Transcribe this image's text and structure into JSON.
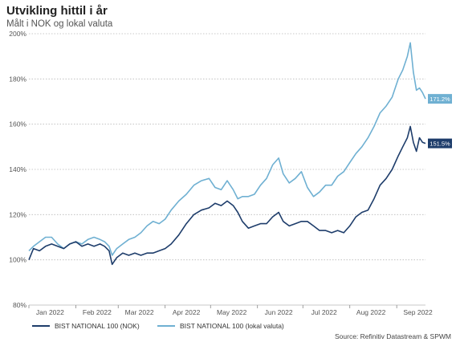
{
  "title": "Utvikling hittil i år",
  "subtitle": "Målt i NOK og lokal valuta",
  "source": "Source: Refinitiv Datastream & SPWM",
  "chart_data": {
    "type": "line",
    "ylim": [
      80,
      200
    ],
    "yticks": [
      "80%",
      "100%",
      "120%",
      "140%",
      "160%",
      "180%",
      "200%"
    ],
    "ytick_values": [
      80,
      100,
      120,
      140,
      160,
      180,
      200
    ],
    "xticks": [
      "Jan 2022",
      "Feb 2022",
      "Mar 2022",
      "Apr 2022",
      "May 2022",
      "Jun 2022",
      "Jul 2022",
      "Aug 2022",
      "Sep 2022"
    ],
    "xlim": [
      "2022-01-01",
      "2022-09-20"
    ],
    "grid": true,
    "legend_position": "bottom-left",
    "series": [
      {
        "name": "BIST NATIONAL 100 (NOK)",
        "color": "#1e3d6b",
        "end_label": "151.5%",
        "points": [
          [
            "2022-01-01",
            100
          ],
          [
            "2022-01-04",
            105
          ],
          [
            "2022-01-08",
            104
          ],
          [
            "2022-01-12",
            106
          ],
          [
            "2022-01-16",
            107
          ],
          [
            "2022-01-20",
            106
          ],
          [
            "2022-01-24",
            105
          ],
          [
            "2022-01-28",
            107
          ],
          [
            "2022-02-01",
            108
          ],
          [
            "2022-02-05",
            106
          ],
          [
            "2022-02-09",
            107
          ],
          [
            "2022-02-13",
            106
          ],
          [
            "2022-02-17",
            107
          ],
          [
            "2022-02-20",
            106
          ],
          [
            "2022-02-23",
            104
          ],
          [
            "2022-02-25",
            98
          ],
          [
            "2022-02-28",
            101
          ],
          [
            "2022-03-04",
            103
          ],
          [
            "2022-03-08",
            102
          ],
          [
            "2022-03-12",
            103
          ],
          [
            "2022-03-16",
            102
          ],
          [
            "2022-03-20",
            103
          ],
          [
            "2022-03-24",
            103
          ],
          [
            "2022-03-28",
            104
          ],
          [
            "2022-04-01",
            105
          ],
          [
            "2022-04-05",
            107
          ],
          [
            "2022-04-10",
            111
          ],
          [
            "2022-04-15",
            116
          ],
          [
            "2022-04-20",
            120
          ],
          [
            "2022-04-25",
            122
          ],
          [
            "2022-04-30",
            123
          ],
          [
            "2022-05-04",
            125
          ],
          [
            "2022-05-08",
            124
          ],
          [
            "2022-05-12",
            126
          ],
          [
            "2022-05-16",
            124
          ],
          [
            "2022-05-19",
            121
          ],
          [
            "2022-05-22",
            117
          ],
          [
            "2022-05-26",
            114
          ],
          [
            "2022-05-30",
            115
          ],
          [
            "2022-06-03",
            116
          ],
          [
            "2022-06-07",
            116
          ],
          [
            "2022-06-11",
            119
          ],
          [
            "2022-06-15",
            121
          ],
          [
            "2022-06-18",
            117
          ],
          [
            "2022-06-22",
            115
          ],
          [
            "2022-06-26",
            116
          ],
          [
            "2022-06-30",
            117
          ],
          [
            "2022-07-04",
            117
          ],
          [
            "2022-07-08",
            115
          ],
          [
            "2022-07-12",
            113
          ],
          [
            "2022-07-16",
            113
          ],
          [
            "2022-07-20",
            112
          ],
          [
            "2022-07-24",
            113
          ],
          [
            "2022-07-28",
            112
          ],
          [
            "2022-08-01",
            115
          ],
          [
            "2022-08-05",
            119
          ],
          [
            "2022-08-09",
            121
          ],
          [
            "2022-08-13",
            122
          ],
          [
            "2022-08-17",
            127
          ],
          [
            "2022-08-21",
            133
          ],
          [
            "2022-08-25",
            136
          ],
          [
            "2022-08-29",
            140
          ],
          [
            "2022-09-02",
            146
          ],
          [
            "2022-09-05",
            150
          ],
          [
            "2022-09-08",
            154
          ],
          [
            "2022-09-10",
            159
          ],
          [
            "2022-09-12",
            152
          ],
          [
            "2022-09-14",
            148
          ],
          [
            "2022-09-16",
            154
          ],
          [
            "2022-09-18",
            152
          ],
          [
            "2022-09-20",
            151.5
          ]
        ]
      },
      {
        "name": "BIST NATIONAL 100 (lokal valuta)",
        "color": "#6fb0d2",
        "end_label": "171.2%",
        "points": [
          [
            "2022-01-01",
            104
          ],
          [
            "2022-01-04",
            106
          ],
          [
            "2022-01-08",
            108
          ],
          [
            "2022-01-12",
            110
          ],
          [
            "2022-01-16",
            110
          ],
          [
            "2022-01-20",
            107
          ],
          [
            "2022-01-24",
            105
          ],
          [
            "2022-01-28",
            107
          ],
          [
            "2022-02-01",
            108
          ],
          [
            "2022-02-05",
            107
          ],
          [
            "2022-02-09",
            109
          ],
          [
            "2022-02-13",
            110
          ],
          [
            "2022-02-17",
            109
          ],
          [
            "2022-02-20",
            108
          ],
          [
            "2022-02-23",
            106
          ],
          [
            "2022-02-25",
            102
          ],
          [
            "2022-02-28",
            105
          ],
          [
            "2022-03-04",
            107
          ],
          [
            "2022-03-08",
            109
          ],
          [
            "2022-03-12",
            110
          ],
          [
            "2022-03-16",
            112
          ],
          [
            "2022-03-20",
            115
          ],
          [
            "2022-03-24",
            117
          ],
          [
            "2022-03-28",
            116
          ],
          [
            "2022-04-01",
            118
          ],
          [
            "2022-04-05",
            122
          ],
          [
            "2022-04-10",
            126
          ],
          [
            "2022-04-15",
            129
          ],
          [
            "2022-04-20",
            133
          ],
          [
            "2022-04-25",
            135
          ],
          [
            "2022-04-30",
            136
          ],
          [
            "2022-05-04",
            132
          ],
          [
            "2022-05-08",
            131
          ],
          [
            "2022-05-12",
            135
          ],
          [
            "2022-05-16",
            131
          ],
          [
            "2022-05-19",
            127
          ],
          [
            "2022-05-22",
            128
          ],
          [
            "2022-05-26",
            128
          ],
          [
            "2022-05-30",
            129
          ],
          [
            "2022-06-03",
            133
          ],
          [
            "2022-06-07",
            136
          ],
          [
            "2022-06-11",
            142
          ],
          [
            "2022-06-15",
            145
          ],
          [
            "2022-06-18",
            138
          ],
          [
            "2022-06-22",
            134
          ],
          [
            "2022-06-26",
            136
          ],
          [
            "2022-06-30",
            139
          ],
          [
            "2022-07-04",
            132
          ],
          [
            "2022-07-08",
            128
          ],
          [
            "2022-07-12",
            130
          ],
          [
            "2022-07-16",
            133
          ],
          [
            "2022-07-20",
            133
          ],
          [
            "2022-07-24",
            137
          ],
          [
            "2022-07-28",
            139
          ],
          [
            "2022-08-01",
            143
          ],
          [
            "2022-08-05",
            147
          ],
          [
            "2022-08-09",
            150
          ],
          [
            "2022-08-13",
            154
          ],
          [
            "2022-08-17",
            159
          ],
          [
            "2022-08-21",
            165
          ],
          [
            "2022-08-25",
            168
          ],
          [
            "2022-08-29",
            172
          ],
          [
            "2022-09-02",
            180
          ],
          [
            "2022-09-05",
            184
          ],
          [
            "2022-09-08",
            190
          ],
          [
            "2022-09-10",
            196
          ],
          [
            "2022-09-12",
            183
          ],
          [
            "2022-09-14",
            175
          ],
          [
            "2022-09-16",
            176
          ],
          [
            "2022-09-18",
            174
          ],
          [
            "2022-09-20",
            171.2
          ]
        ]
      }
    ]
  }
}
